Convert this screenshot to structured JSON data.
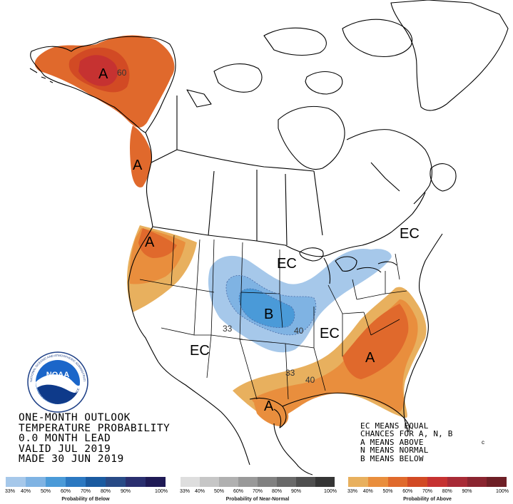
{
  "map_labels": {
    "alaska_above": "A",
    "alaska_60": "60",
    "southeast_alaska_above": "A",
    "pacific_nw_above": "A",
    "northeast_ec": "EC",
    "great_lakes_ec": "EC",
    "central_below": "B",
    "contour_33_central": "33",
    "contour_40_central": "40",
    "east_ec": "EC",
    "southwest_ec": "EC",
    "southeast_above": "A",
    "texas_above": "A",
    "contour_33_south": "33",
    "contour_40_south": "40"
  },
  "logo": {
    "text": "NOAA",
    "ring_text": "NATIONAL OCEANIC AND ATMOSPHERIC ADMINISTRATION",
    "ring_text_bottom": "U.S. DEPARTMENT OF COMMERCE"
  },
  "title": {
    "line1": "ONE-MONTH OUTLOOK",
    "line2": "TEMPERATURE PROBABILITY",
    "line3": "0.0 MONTH LEAD",
    "line4": "VALID JUL 2019",
    "line5": "MADE 30 JUN 2019"
  },
  "legend_note": {
    "line1": "EC MEANS EQUAL",
    "line2": "CHANCES FOR A, N, B",
    "line3": "A MEANS ABOVE",
    "line4": "N MEANS NORMAL",
    "line5": "B MEANS BELOW"
  },
  "scales": {
    "below": {
      "title": "Probability of Below",
      "ticks": [
        "33%",
        "40%",
        "50%",
        "60%",
        "70%",
        "80%",
        "90%",
        "100%"
      ],
      "colors": [
        "#a6c8ea",
        "#7fb3e3",
        "#4a9ad8",
        "#2b78c1",
        "#1a5aa0",
        "#284a86",
        "#2a2f6f",
        "#1f1a55"
      ]
    },
    "normal": {
      "title": "Probability of Near-Normal",
      "ticks": [
        "33%",
        "40%",
        "50%",
        "60%",
        "70%",
        "80%",
        "90%",
        "100%"
      ],
      "colors": [
        "#dedede",
        "#c6c6c6",
        "#b0b0b0",
        "#999999",
        "#818181",
        "#696969",
        "#4f4f4f",
        "#353535"
      ]
    },
    "above": {
      "title": "Probability of Above",
      "ticks": [
        "33%",
        "40%",
        "50%",
        "60%",
        "70%",
        "80%",
        "90%",
        "100%"
      ],
      "colors": [
        "#e8b05e",
        "#e98e3d",
        "#e06a2c",
        "#d24a24",
        "#c63231",
        "#a82b36",
        "#8a2530",
        "#6e1f26"
      ]
    }
  }
}
